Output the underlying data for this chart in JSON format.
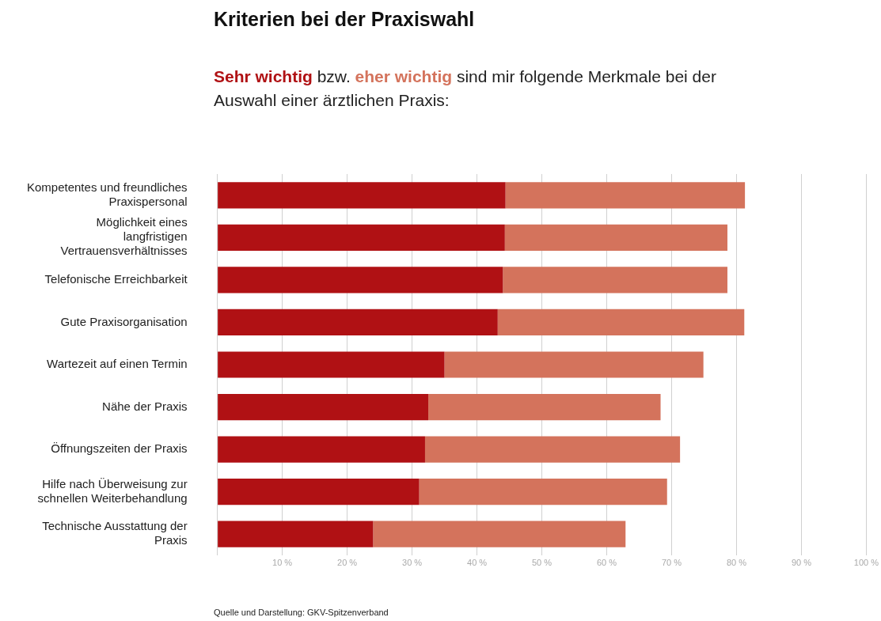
{
  "chart_data": {
    "type": "bar",
    "orientation": "horizontal",
    "stacked": true,
    "title": "Kriterien bei der Praxiswahl",
    "subtitle": "sind mir folgende Merkmale bei der Auswahl einer ärztlichen Praxis:",
    "categories": [
      "Kompetentes und freundliches Praxispersonal",
      "Möglichkeit eines langfristigen Vertrauensverhältnisses",
      "Telefonische Erreichbarkeit",
      "Gute Praxisorganisation",
      "Wartezeit auf einen Termin",
      "Nähe der Praxis",
      "Öffnungszeiten der Praxis",
      "Hilfe nach Überweisung zur schnellen Weiterbehandlung",
      "Technische Ausstattung der Praxis"
    ],
    "series": [
      {
        "name": "Sehr wichtig",
        "color": "#b01114",
        "values": [
          44.4,
          44.3,
          44.0,
          43.2,
          35.0,
          32.5,
          32.0,
          31.1,
          24.0
        ]
      },
      {
        "name": "eher wichtig",
        "color": "#d4735c",
        "values": [
          36.9,
          34.3,
          34.6,
          38.0,
          39.9,
          35.8,
          39.3,
          38.2,
          38.9
        ]
      }
    ],
    "xlim": [
      0,
      100
    ],
    "xticks": [
      {
        "value": 0,
        "label": null
      },
      {
        "value": 10,
        "label": "10 %"
      },
      {
        "value": 20,
        "label": "20 %"
      },
      {
        "value": 30,
        "label": "30 %"
      },
      {
        "value": 40,
        "label": "40 %"
      },
      {
        "value": 50,
        "label": "50 %"
      },
      {
        "value": 60,
        "label": "60 %"
      },
      {
        "value": 70,
        "label": "70 %"
      },
      {
        "value": 80,
        "label": "80 %"
      },
      {
        "value": 90,
        "label": "90 %"
      },
      {
        "value": 100,
        "label": "100 %"
      }
    ],
    "grid": "x",
    "legend": "top",
    "annotations": [
      "bzw.",
      "Quelle und Darstellung: GKV-Spitzenverband"
    ]
  }
}
